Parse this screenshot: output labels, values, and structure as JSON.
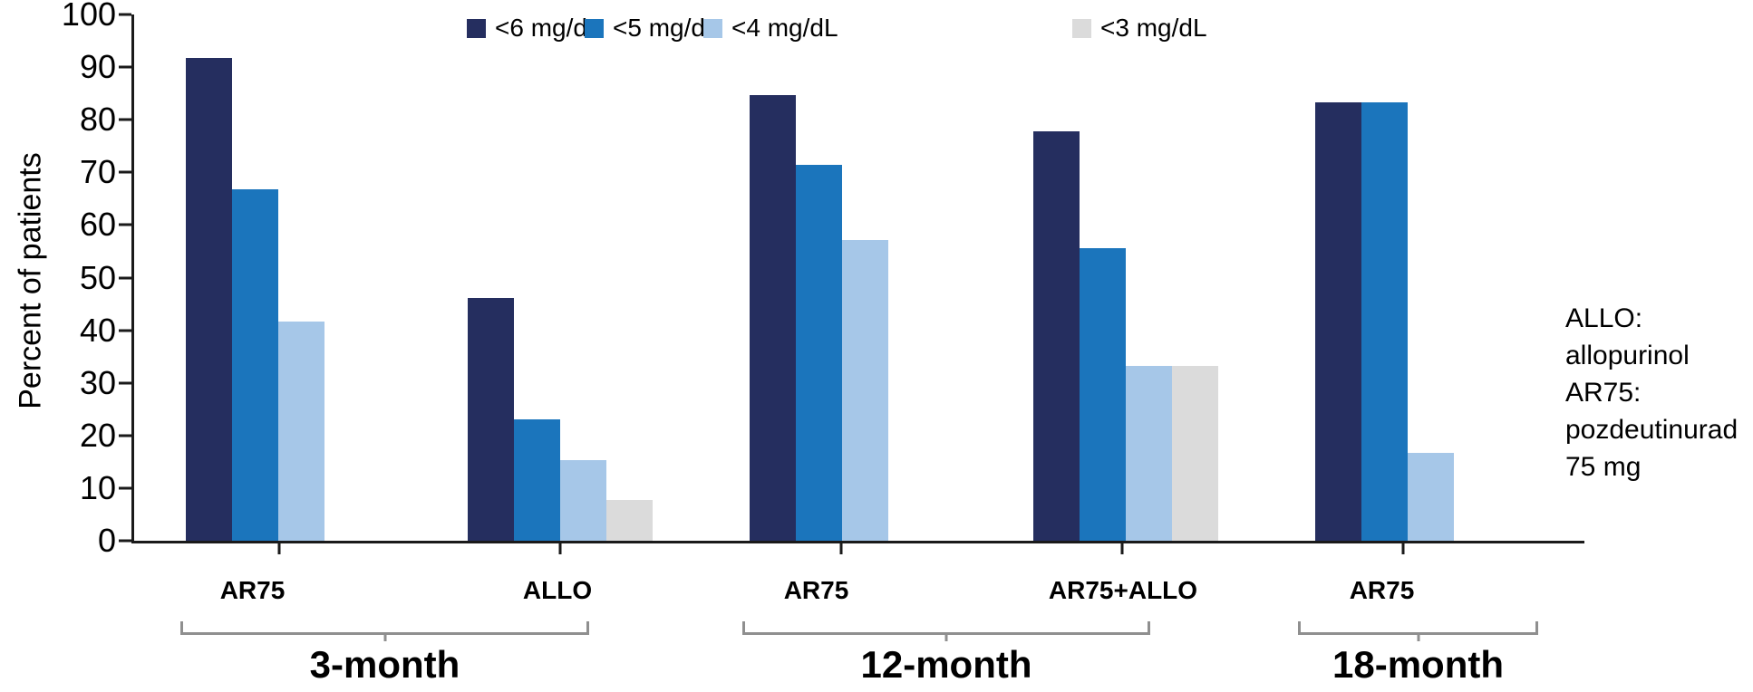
{
  "chart_data": {
    "type": "bar",
    "title": "",
    "ylabel": "Percent of patients",
    "xlabel": "",
    "ylim": [
      0,
      100
    ],
    "yticks": [
      0,
      10,
      20,
      30,
      40,
      50,
      60,
      70,
      80,
      90,
      100
    ],
    "grid": false,
    "legend_position": "top",
    "series_labels": [
      "<6 mg/dL",
      "<5 mg/dL",
      "<4 mg/dL",
      "<3 mg/dL"
    ],
    "series_colors": [
      "#252e5f",
      "#1b75bc",
      "#a6c7e8",
      "#dbdbdb"
    ],
    "groups": [
      {
        "label": "AR75",
        "period": "3-month",
        "values": [
          91.7,
          66.7,
          41.7,
          null
        ]
      },
      {
        "label": "ALLO",
        "period": "3-month",
        "values": [
          46.2,
          23.1,
          15.4,
          7.7
        ]
      },
      {
        "label": "AR75",
        "period": "12-month",
        "values": [
          84.6,
          71.4,
          57.1,
          null
        ]
      },
      {
        "label": "AR75+ALLO",
        "period": "12-month",
        "values": [
          77.8,
          55.6,
          33.3,
          33.3
        ]
      },
      {
        "label": "AR75",
        "period": "18-month",
        "values": [
          83.3,
          83.3,
          16.7,
          null
        ]
      }
    ],
    "period_brackets": [
      {
        "label": "3-month",
        "group_indices": [
          0,
          1
        ]
      },
      {
        "label": "12-month",
        "group_indices": [
          2,
          3
        ]
      },
      {
        "label": "18-month",
        "group_indices": [
          4
        ]
      }
    ]
  },
  "annotation": {
    "lines": [
      "ALLO:",
      "allopurinol",
      "AR75:",
      "pozdeutinurad",
      "75 mg"
    ]
  },
  "colors": {
    "axis": "#1a1a1a",
    "bracket": "#8f8f8f",
    "background": "#ffffff"
  }
}
